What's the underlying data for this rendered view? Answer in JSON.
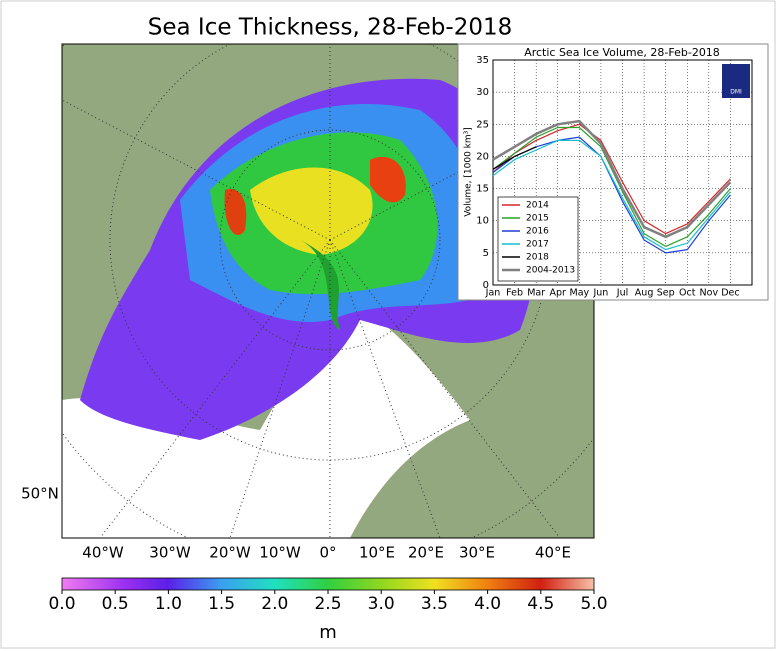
{
  "title": "Sea Ice Thickness, 28-Feb-2018",
  "map": {
    "lat_labels": [
      "50°N"
    ],
    "lon_labels": [
      "40°W",
      "30°W",
      "20°W",
      "10°W",
      "0°",
      "10°E",
      "20°E",
      "30°E",
      "40°E"
    ]
  },
  "colorbar": {
    "label": "m",
    "lim": [
      0,
      5
    ],
    "ticks": [
      {
        "value": 0,
        "label": "0.0"
      },
      0.5,
      {
        "value": 1,
        "label": "1.0"
      },
      1.5,
      {
        "value": 2,
        "label": "2.0"
      },
      2.5,
      {
        "value": 3,
        "label": "3.0"
      },
      3.5,
      {
        "value": 4,
        "label": "4.0"
      },
      4.5,
      {
        "value": 5,
        "label": "5.0"
      }
    ]
  },
  "inset_logo": "DMI",
  "chart_data": {
    "type": "line",
    "title": "Arctic Sea Ice Volume, 28-Feb-2018",
    "y_label": "Volume, [1000 km³]",
    "categories": [
      "Jan",
      "Feb",
      "Mar",
      "Apr",
      "May",
      "Jun",
      "Jul",
      "Aug",
      "Sep",
      "Oct",
      "Nov",
      "Dec"
    ],
    "ylim": [
      0,
      35
    ],
    "yticks": [
      0,
      5,
      10,
      15,
      20,
      25,
      30,
      35
    ],
    "grid": true,
    "legend": "lower left",
    "series": [
      {
        "name": "2014",
        "color": "#d62728",
        "values": [
          17.5,
          20.5,
          22.5,
          24,
          25,
          22.5,
          16,
          10,
          8,
          9.5,
          13,
          16.5
        ]
      },
      {
        "name": "2015",
        "color": "#2ca02c",
        "values": [
          18,
          20.5,
          23,
          24.5,
          24.5,
          21.5,
          14.5,
          8,
          6,
          7.5,
          11,
          15
        ]
      },
      {
        "name": "2016",
        "color": "#1f3fd6",
        "values": [
          17.5,
          20,
          21.5,
          22.5,
          23,
          20,
          13,
          7,
          5,
          5.5,
          10,
          14
        ]
      },
      {
        "name": "2017",
        "color": "#17becf",
        "values": [
          17,
          19.5,
          21,
          22.5,
          22.5,
          20,
          13.5,
          7.5,
          5.5,
          6.5,
          10.5,
          14.5
        ]
      },
      {
        "name": "2018",
        "color": "#000000",
        "values": [
          18,
          20,
          21.5,
          null,
          null,
          null,
          null,
          null,
          null,
          null,
          null,
          null
        ]
      },
      {
        "name": "2004-2013",
        "color": "#808080",
        "values": [
          19.5,
          21.5,
          23.5,
          25,
          25.5,
          22,
          15,
          9,
          7.5,
          9,
          12.5,
          16
        ]
      }
    ]
  }
}
